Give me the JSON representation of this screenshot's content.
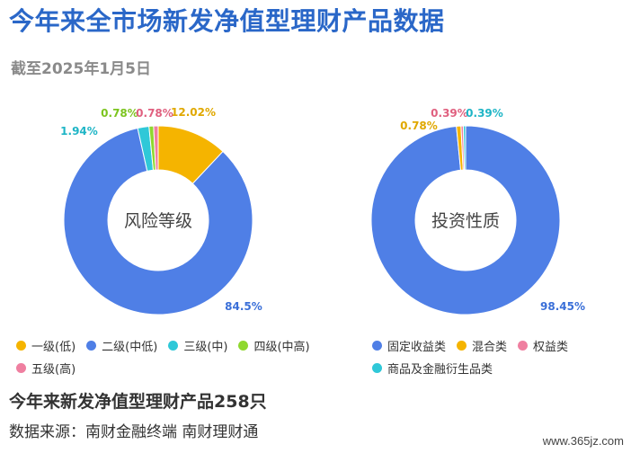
{
  "title": "今年来全市场新发净值型理财产品数据",
  "subtitle": "截至2025年1月5日",
  "footer": {
    "count_text": "今年来新发净值型理财产品258只",
    "source_text": "数据来源：南财金融终端 南财理财通"
  },
  "watermark": "www.365jz.com",
  "chart_data": [
    {
      "type": "pie",
      "center_label": "风险等级",
      "slices": [
        {
          "name": "一级(低)",
          "value": 12.02,
          "label": "12.02%",
          "color": "#f5b400"
        },
        {
          "name": "二级(中低)",
          "value": 84.5,
          "label": "84.5%",
          "color": "#4f7fe6"
        },
        {
          "name": "三级(中)",
          "value": 1.94,
          "label": "1.94%",
          "color": "#2fc8d8"
        },
        {
          "name": "四级(中高)",
          "value": 0.78,
          "label": "0.78%",
          "color": "#8fd82f"
        },
        {
          "name": "五级(高)",
          "value": 0.78,
          "label": "0.78%",
          "color": "#ef7fa0"
        }
      ],
      "legend_position": "bottom-left"
    },
    {
      "type": "pie",
      "center_label": "投资性质",
      "slices": [
        {
          "name": "固定收益类",
          "value": 98.45,
          "label": "98.45%",
          "color": "#4f7fe6"
        },
        {
          "name": "混合类",
          "value": 0.78,
          "label": "0.78%",
          "color": "#f5b400"
        },
        {
          "name": "权益类",
          "value": 0.39,
          "label": "0.39%",
          "color": "#ef7fa0"
        },
        {
          "name": "商品及金融衍生品类",
          "value": 0.39,
          "label": "0.39%",
          "color": "#2fc8d8"
        }
      ],
      "legend_position": "bottom-left"
    }
  ]
}
